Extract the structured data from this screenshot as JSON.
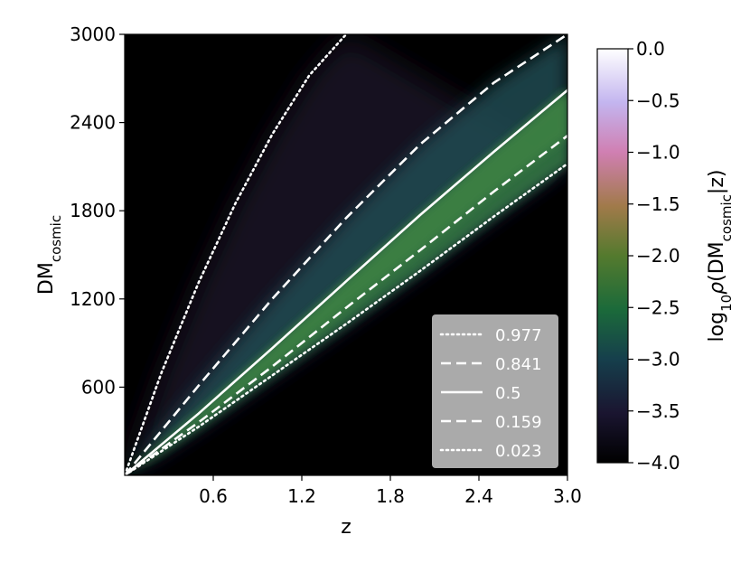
{
  "chart_data": {
    "type": "heatmap",
    "x": {
      "label": "z",
      "range": [
        0.0,
        3.0
      ],
      "ticks": [
        0.6,
        1.2,
        1.8,
        2.4,
        3.0
      ],
      "tick_labels": [
        "0.6",
        "1.2",
        "1.8",
        "2.4",
        "3.0"
      ]
    },
    "y": {
      "label_main": "DM",
      "label_sub": "cosmic",
      "range": [
        0,
        3000
      ],
      "ticks": [
        600,
        1200,
        1800,
        2400,
        3000
      ],
      "tick_labels": [
        "600",
        "1200",
        "1800",
        "2400",
        "3000"
      ]
    },
    "colorbar": {
      "label_prefix": "log",
      "label_base": "10",
      "label_rho": "ρ",
      "label_open": "(DM",
      "label_sub": "cosmic",
      "label_close": "|z)",
      "range": [
        -4.0,
        0.0
      ],
      "ticks": [
        0.0,
        -0.5,
        -1.0,
        -1.5,
        -2.0,
        -2.5,
        -3.0,
        -3.5,
        -4.0
      ],
      "tick_labels": [
        "0.0",
        "−0.5",
        "−1.0",
        "−1.5",
        "−2.0",
        "−2.5",
        "−3.0",
        "−3.5",
        "−4.0"
      ],
      "colormap": "cubehelix"
    },
    "background_color": "#000000",
    "line_color": "#ffffff",
    "quantile_lines": [
      {
        "label": "0.977",
        "style": "dotted",
        "x": [
          0.0,
          0.25,
          0.5,
          0.75,
          1.0,
          1.25,
          1.5
        ],
        "y": [
          0,
          700,
          1310,
          1850,
          2320,
          2720,
          3000
        ]
      },
      {
        "label": "0.841",
        "style": "dashed",
        "x": [
          0.0,
          0.5,
          1.0,
          1.5,
          2.0,
          2.5,
          3.0
        ],
        "y": [
          0,
          610,
          1200,
          1750,
          2250,
          2670,
          3000
        ]
      },
      {
        "label": "0.5",
        "style": "solid",
        "x": [
          0.0,
          0.5,
          1.0,
          1.5,
          2.0,
          2.5,
          3.0
        ],
        "y": [
          0,
          420,
          865,
          1320,
          1770,
          2200,
          2620
        ]
      },
      {
        "label": "0.159",
        "style": "dashed",
        "x": [
          0.0,
          0.5,
          1.0,
          1.5,
          2.0,
          2.5,
          3.0
        ],
        "y": [
          0,
          360,
          740,
          1140,
          1530,
          1930,
          2310
        ]
      },
      {
        "label": "0.023",
        "style": "dotted",
        "x": [
          0.0,
          0.5,
          1.0,
          1.5,
          2.0,
          2.5,
          3.0
        ],
        "y": [
          0,
          330,
          680,
          1030,
          1390,
          1760,
          2120
        ]
      }
    ],
    "legend": {
      "placement": "lower-right",
      "entries": [
        {
          "label": "0.977",
          "style": "dotted"
        },
        {
          "label": "0.841",
          "style": "dashed"
        },
        {
          "label": "0.5",
          "style": "solid"
        },
        {
          "label": "0.159",
          "style": "dashed"
        },
        {
          "label": "0.023",
          "style": "dotted"
        }
      ]
    }
  }
}
